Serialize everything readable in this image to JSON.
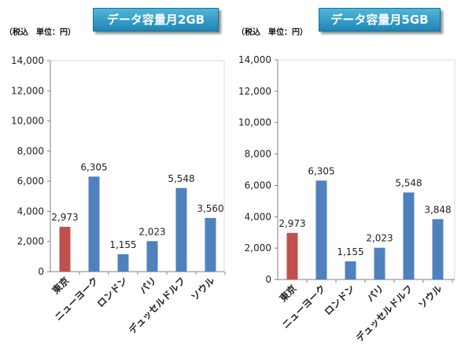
{
  "chart_data": [
    {
      "type": "bar",
      "title": "データ容量月2GB",
      "unit_note": "（税込　単位：円）",
      "categories": [
        "東京",
        "ニューヨーク",
        "ロンドン",
        "パリ",
        "デュッセルドルフ",
        "ソウル"
      ],
      "values": [
        2973,
        6305,
        1155,
        2023,
        5548,
        3560
      ],
      "value_labels": [
        "2,973",
        "6,305",
        "1,155",
        "2,023",
        "5,548",
        "3,560"
      ],
      "ylim": [
        0,
        14000
      ],
      "yticks": [
        "0",
        "2,000",
        "4,000",
        "6,000",
        "8,000",
        "10,000",
        "12,000",
        "14,000"
      ],
      "bar_colors": [
        "#c0504d",
        "#4f81bd",
        "#4f81bd",
        "#4f81bd",
        "#4f81bd",
        "#4f81bd"
      ],
      "grid": false,
      "legend": "none"
    },
    {
      "type": "bar",
      "title": "データ容量月5GB",
      "unit_note": "（税込　単位：円）",
      "categories": [
        "東京",
        "ニューヨーク",
        "ロンドン",
        "パリ",
        "デュッセルドルフ",
        "ソウル"
      ],
      "values": [
        2973,
        6305,
        1155,
        2023,
        5548,
        3848
      ],
      "value_labels": [
        "2,973",
        "6,305",
        "1,155",
        "2,023",
        "5,548",
        "3,848"
      ],
      "ylim": [
        0,
        14000
      ],
      "yticks": [
        "0",
        "2,000",
        "4,000",
        "6,000",
        "8,000",
        "10,000",
        "12,000",
        "14,000"
      ],
      "bar_colors": [
        "#c0504d",
        "#4f81bd",
        "#4f81bd",
        "#4f81bd",
        "#4f81bd",
        "#4f81bd"
      ],
      "grid": false,
      "legend": "none"
    }
  ]
}
